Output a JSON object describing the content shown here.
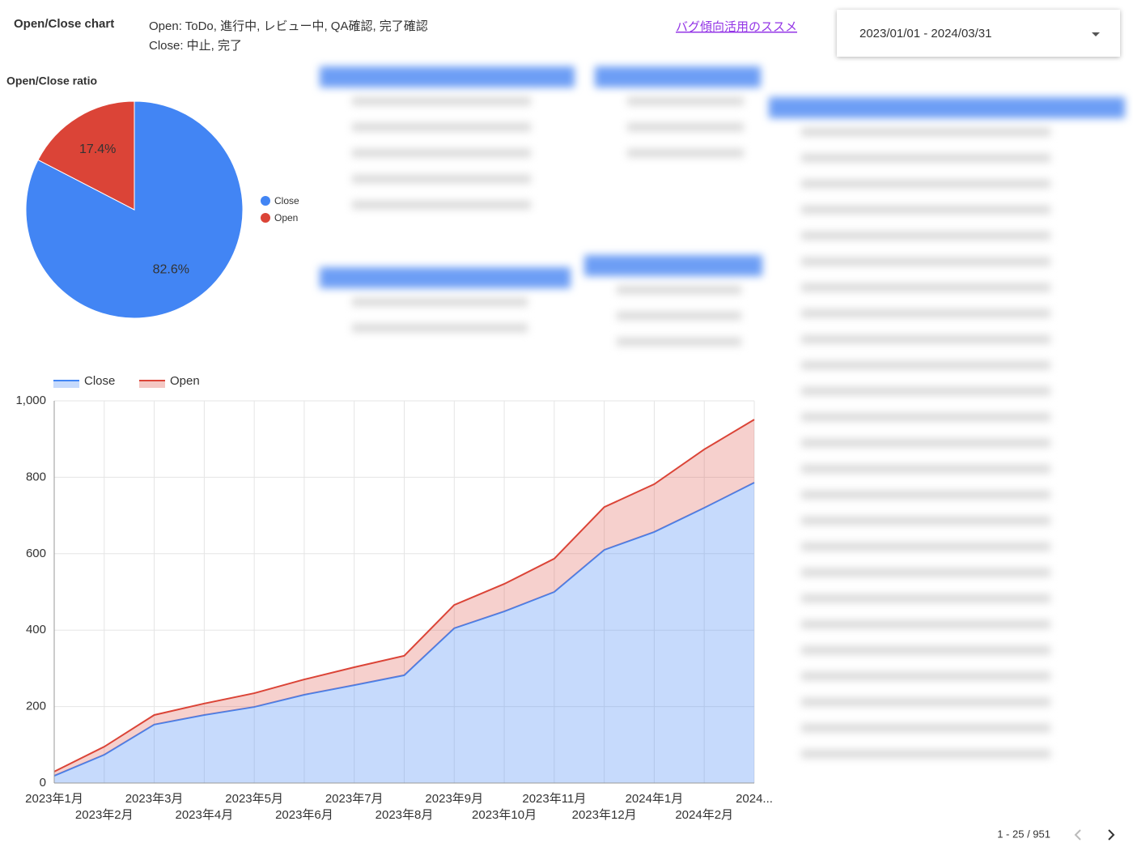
{
  "header": {
    "title": "Open/Close chart",
    "open_note": "Open: ToDo, 進行中, レビュー中, QA確認, 完了確認",
    "close_note": "Close: 中止, 完了",
    "link": "バグ傾向活用のススメ",
    "date_range": "2023/01/01 - 2024/03/31"
  },
  "pagination": "1 - 25 / 951",
  "chart_data": [
    {
      "type": "pie",
      "title": "Open/Close ratio",
      "categories": [
        "Close",
        "Open"
      ],
      "values": [
        82.6,
        17.4
      ],
      "value_labels": [
        "82.6%",
        "17.4%"
      ],
      "colors": [
        "#4285f4",
        "#db4437"
      ],
      "legend": "right"
    },
    {
      "type": "area",
      "stacked": true,
      "categories": [
        "2023年1月",
        "2023年2月",
        "2023年3月",
        "2023年4月",
        "2023年5月",
        "2023年6月",
        "2023年7月",
        "2023年8月",
        "2023年9月",
        "2023年10月",
        "2023年11月",
        "2023年12月",
        "2024年1月",
        "2024年2月",
        "2024..."
      ],
      "series": [
        {
          "name": "Close",
          "color": "#4285f4",
          "values": [
            19,
            74,
            153,
            178,
            199,
            231,
            256,
            282,
            405,
            449,
            500,
            610,
            657,
            720,
            786
          ]
        },
        {
          "name": "Open",
          "color": "#db4437",
          "values": [
            11,
            21,
            25,
            30,
            36,
            40,
            47,
            51,
            61,
            72,
            87,
            112,
            125,
            153,
            165
          ]
        }
      ],
      "ylim": [
        0,
        1000
      ],
      "yticks": [
        0,
        200,
        400,
        600,
        800,
        {
          "value": 1000,
          "label": "1,000"
        }
      ],
      "grid": true,
      "legend": "top"
    }
  ]
}
